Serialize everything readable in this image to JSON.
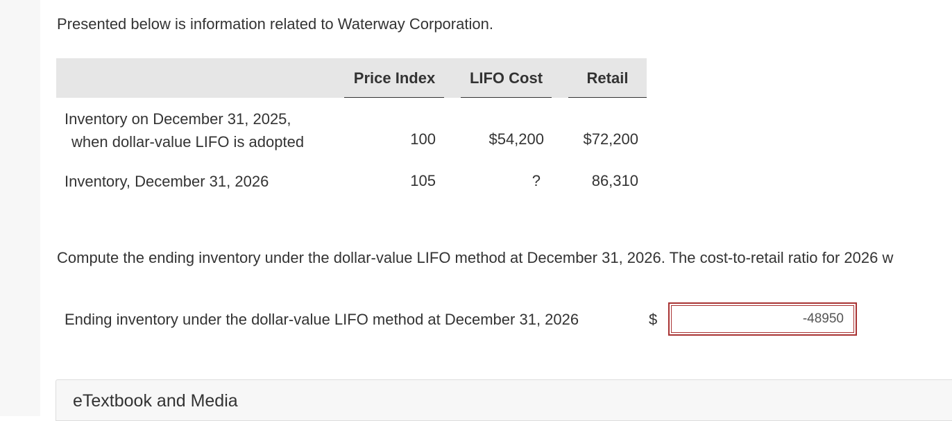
{
  "intro": "Presented below is information related to Waterway Corporation.",
  "table": {
    "headers": [
      "Price Index",
      "LIFO Cost",
      "Retail"
    ],
    "rows": [
      {
        "label_line1": "Inventory on December 31, 2025,",
        "label_line2": "when dollar-value LIFO is adopted",
        "price_index": "100",
        "lifo_cost": "$54,200",
        "retail": "$72,200"
      },
      {
        "label_line1": "Inventory, December 31, 2026",
        "price_index": "105",
        "lifo_cost": "?",
        "retail": "86,310"
      }
    ]
  },
  "question": "Compute the ending inventory under the dollar-value LIFO method at December 31, 2026. The cost-to-retail ratio for 2026 w",
  "answer": {
    "label": "Ending inventory under the dollar-value LIFO method at December 31, 2026",
    "currency": "$",
    "value": "-48950",
    "status_color": "#a83232"
  },
  "media": {
    "title": "eTextbook and Media"
  }
}
